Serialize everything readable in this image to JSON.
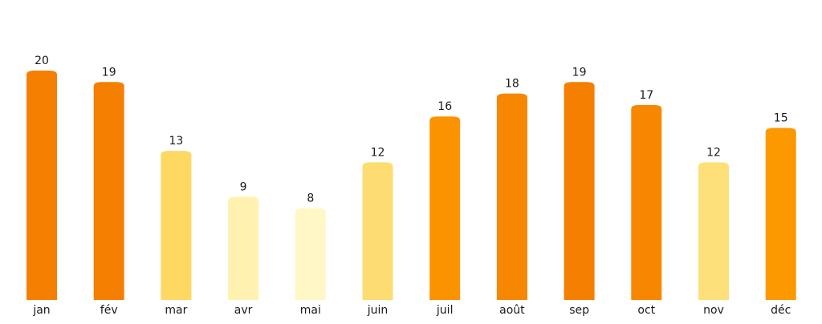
{
  "chart_data": {
    "type": "bar",
    "categories": [
      "jan",
      "fév",
      "mar",
      "avr",
      "mai",
      "juin",
      "juil",
      "août",
      "sep",
      "oct",
      "nov",
      "déc"
    ],
    "values": [
      20,
      19,
      13,
      9,
      8,
      12,
      16,
      18,
      19,
      17,
      12,
      15
    ],
    "colors": [
      "#f57f00",
      "#f57f00",
      "#fdd964",
      "#fff2b0",
      "#fff8c6",
      "#fddd72",
      "#fb9300",
      "#f78600",
      "#f57f00",
      "#f88700",
      "#fde07a",
      "#fc9800"
    ],
    "ylim": [
      0,
      20
    ],
    "grid": false,
    "legend": "none",
    "data_labels": true
  }
}
